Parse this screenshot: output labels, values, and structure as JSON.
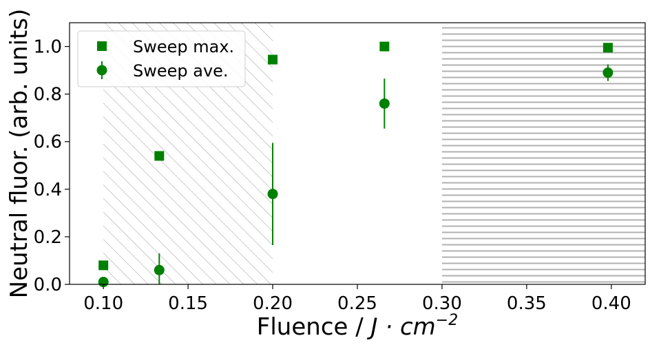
{
  "chart_data": {
    "type": "scatter",
    "xlabel_main": "Fluence / ",
    "xlabel_math": "J · cm",
    "xlabel_sup": "−2",
    "ylabel": "Neutral fluor. (arb. units)",
    "xlim": [
      0.08,
      0.42
    ],
    "ylim": [
      0.0,
      1.1
    ],
    "xticks": [
      0.1,
      0.15,
      0.2,
      0.25,
      0.3,
      0.35,
      0.4
    ],
    "xtick_labels": [
      "0.10",
      "0.15",
      "0.20",
      "0.25",
      "0.30",
      "0.35",
      "0.40"
    ],
    "yticks": [
      0.0,
      0.2,
      0.4,
      0.6,
      0.8,
      1.0
    ],
    "ytick_labels": [
      "0.0",
      "0.2",
      "0.4",
      "0.6",
      "0.8",
      "1.0"
    ],
    "color": "#008000",
    "regions": [
      {
        "hatch": "diagonal",
        "x": [
          0.1,
          0.2
        ]
      },
      {
        "hatch": "horizontal",
        "x": [
          0.3,
          0.42
        ]
      }
    ],
    "legend_position": "top-left",
    "series": [
      {
        "name": "Sweep max.",
        "marker": "square",
        "x": [
          0.1,
          0.133,
          0.2,
          0.266,
          0.398
        ],
        "y": [
          0.08,
          0.54,
          0.945,
          1.0,
          0.995
        ]
      },
      {
        "name": "Sweep ave.",
        "marker": "circle",
        "x": [
          0.1,
          0.133,
          0.2,
          0.266,
          0.398
        ],
        "y": [
          0.01,
          0.06,
          0.38,
          0.76,
          0.89
        ],
        "yerr": [
          0.02,
          0.07,
          0.215,
          0.105,
          0.035
        ]
      }
    ]
  }
}
